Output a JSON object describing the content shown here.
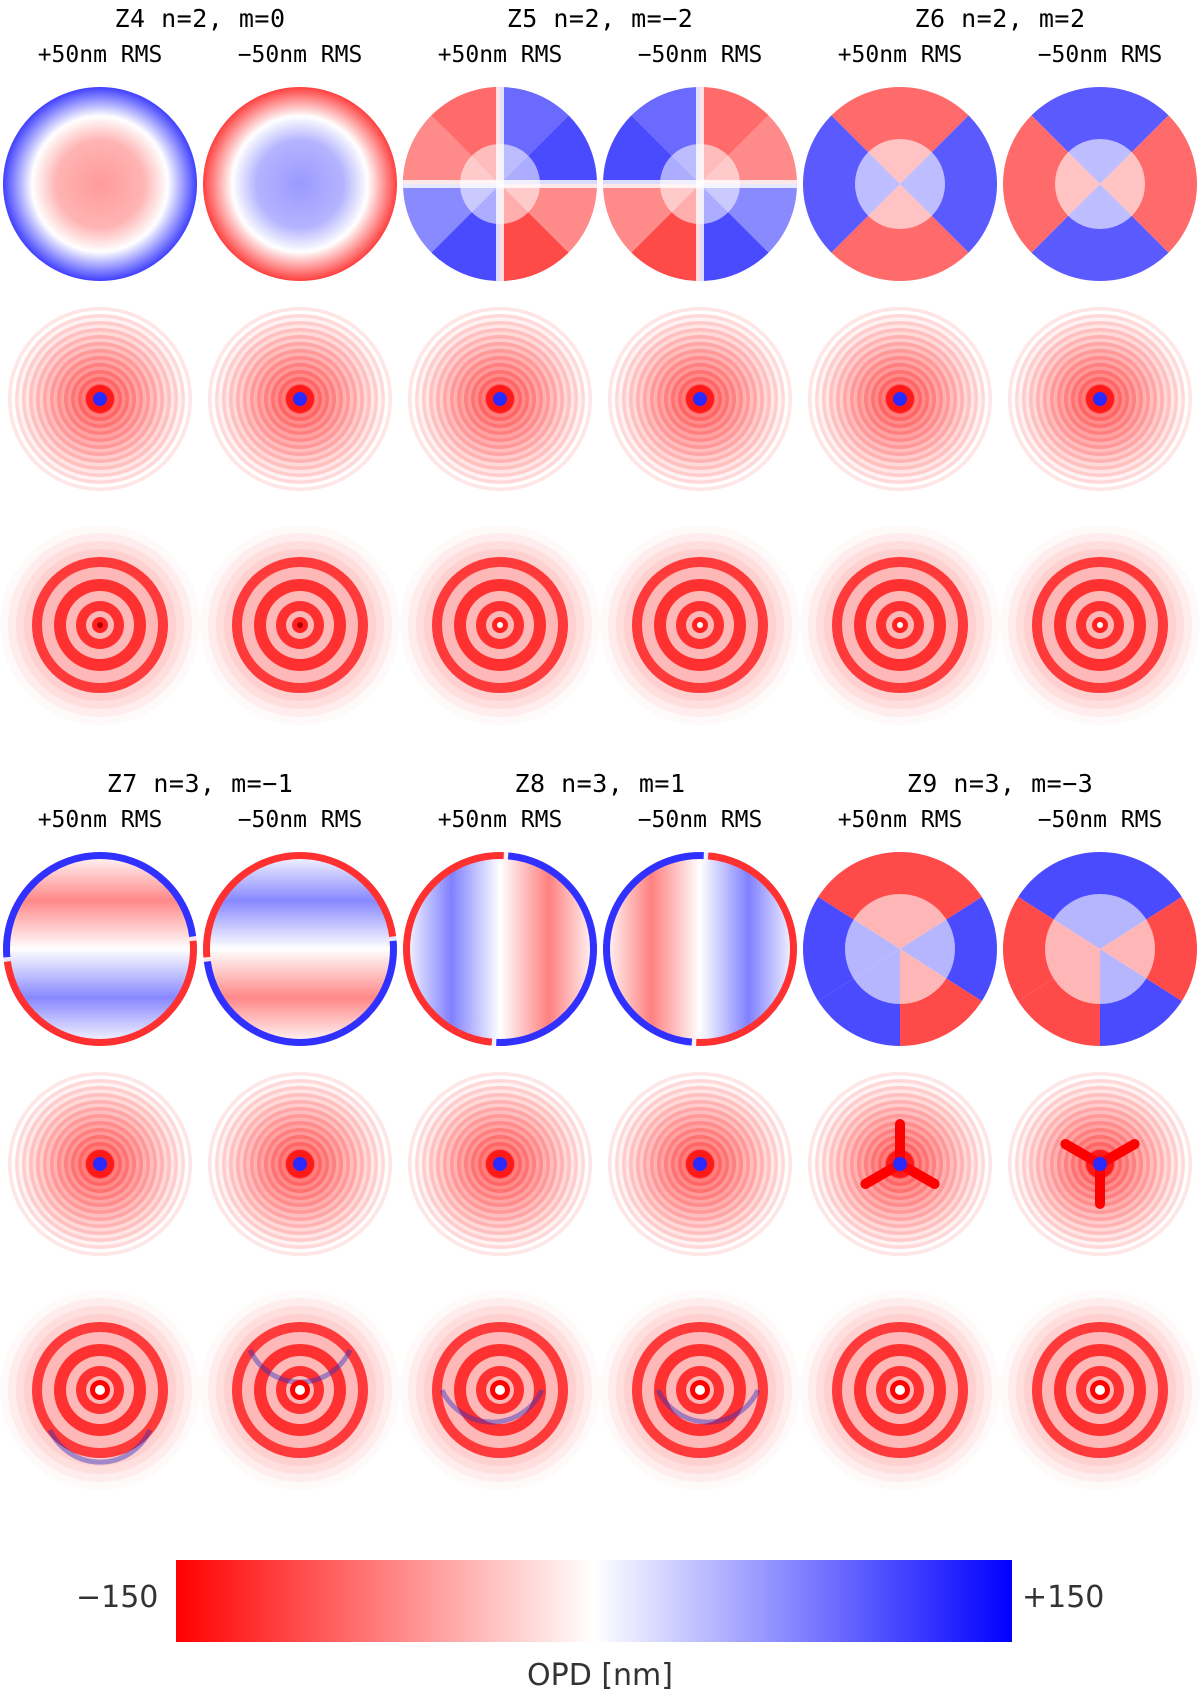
{
  "groups": [
    {
      "title": "Z4 n=2, m=0",
      "plus_label": "+50nm RMS",
      "minus_label": "−50nm RMS"
    },
    {
      "title": "Z5 n=2, m=−2",
      "plus_label": "+50nm RMS",
      "minus_label": "−50nm RMS"
    },
    {
      "title": "Z6 n=2, m=2",
      "plus_label": "+50nm RMS",
      "minus_label": "−50nm RMS"
    },
    {
      "title": "Z7 n=3, m=−1",
      "plus_label": "+50nm RMS",
      "minus_label": "−50nm RMS"
    },
    {
      "title": "Z8 n=3, m=1",
      "plus_label": "+50nm RMS",
      "minus_label": "−50nm RMS"
    },
    {
      "title": "Z9 n=3, m=−3",
      "plus_label": "+50nm RMS",
      "minus_label": "−50nm RMS"
    }
  ],
  "colorbar": {
    "min_label": "−150",
    "max_label": "+150",
    "label": "OPD [nm]",
    "min_color": "#ff0000",
    "mid_color": "#ffffff",
    "max_color": "#0000ff"
  }
}
